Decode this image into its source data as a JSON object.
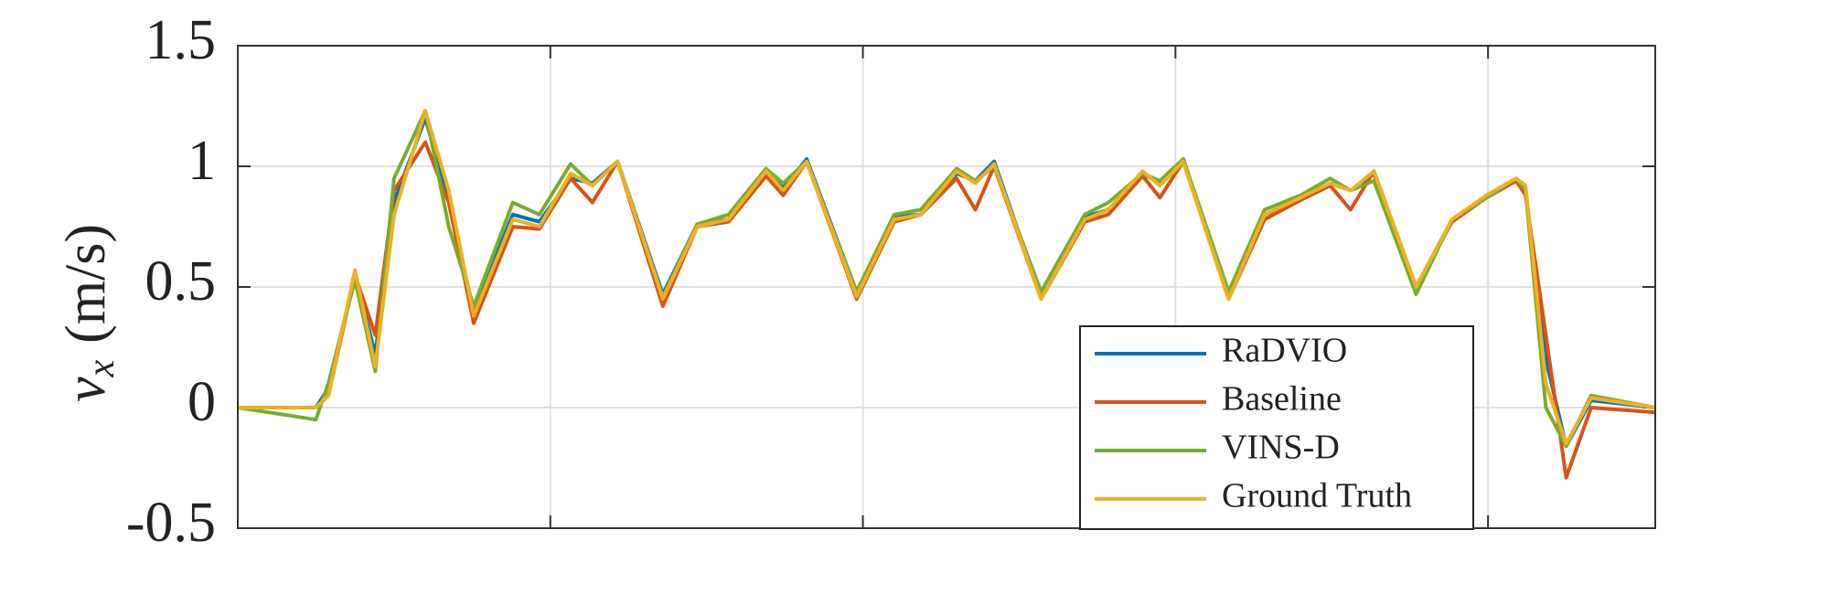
{
  "chart_data": {
    "type": "line",
    "ylabel": {
      "symbol": "v",
      "subscript": "x",
      "unit": "(m/s)"
    },
    "x": [
      0,
      5,
      5.8,
      7.5,
      8.8,
      10,
      12,
      13.5,
      15.1,
      17.6,
      19.3,
      21.3,
      22.7,
      24.3,
      27.2,
      29.4,
      31.4,
      33.8,
      34.9,
      36.4,
      39.6,
      42,
      43.7,
      46,
      47.2,
      48.4,
      51.4,
      54.2,
      55.7,
      57.9,
      59,
      60.5,
      63.4,
      65.7,
      68,
      69.9,
      71.2,
      72.7,
      75.4,
      77.7,
      79.9,
      81.8,
      82.4,
      83.7,
      85,
      86.6,
      90.7
    ],
    "xlim": [
      0,
      90.7
    ],
    "xticks": [
      20,
      40,
      60,
      80
    ],
    "ylim": [
      -0.5,
      1.5
    ],
    "yticks": [
      -0.5,
      0,
      0.5,
      1,
      1.5
    ],
    "grid": true,
    "legend": "lower-right",
    "series": [
      {
        "name": "RaDVIO",
        "color": "#0072BD",
        "values": [
          0,
          0,
          0.08,
          0.55,
          0.22,
          0.85,
          1.2,
          0.85,
          0.4,
          0.8,
          0.77,
          0.95,
          0.93,
          1.02,
          0.47,
          0.76,
          0.78,
          0.97,
          0.91,
          1.03,
          0.48,
          0.79,
          0.8,
          0.97,
          0.94,
          1.02,
          0.46,
          0.79,
          0.82,
          0.97,
          0.93,
          1.03,
          0.47,
          0.8,
          0.86,
          0.93,
          0.9,
          0.97,
          0.5,
          0.78,
          0.87,
          0.94,
          0.9,
          0.2,
          -0.16,
          0.03,
          0
        ]
      },
      {
        "name": "Baseline",
        "color": "#D95319",
        "values": [
          0,
          0,
          0.05,
          0.55,
          0.3,
          0.9,
          1.1,
          0.85,
          0.35,
          0.75,
          0.74,
          0.95,
          0.85,
          1.02,
          0.42,
          0.75,
          0.77,
          0.96,
          0.88,
          1.02,
          0.45,
          0.77,
          0.8,
          0.95,
          0.82,
          1.0,
          0.45,
          0.77,
          0.8,
          0.96,
          0.87,
          1.02,
          0.45,
          0.78,
          0.86,
          0.92,
          0.82,
          0.98,
          0.5,
          0.77,
          0.87,
          0.94,
          0.88,
          0.3,
          -0.29,
          0.0,
          -0.02
        ]
      },
      {
        "name": "VINS-D",
        "color": "#77AC30",
        "values": [
          0,
          -0.05,
          0.1,
          0.53,
          0.15,
          0.95,
          1.23,
          0.75,
          0.42,
          0.85,
          0.8,
          1.01,
          0.92,
          1.02,
          0.46,
          0.76,
          0.8,
          0.99,
          0.93,
          1.02,
          0.48,
          0.8,
          0.82,
          0.99,
          0.94,
          1.0,
          0.48,
          0.8,
          0.85,
          0.97,
          0.94,
          1.03,
          0.48,
          0.82,
          0.88,
          0.95,
          0.9,
          0.94,
          0.47,
          0.78,
          0.87,
          0.95,
          0.9,
          0.0,
          -0.16,
          0.05,
          0
        ]
      },
      {
        "name": "Ground Truth",
        "color": "#EDB120",
        "values": [
          0,
          0,
          0.05,
          0.57,
          0.17,
          0.8,
          1.23,
          0.9,
          0.38,
          0.78,
          0.75,
          0.97,
          0.92,
          1.02,
          0.45,
          0.75,
          0.78,
          0.98,
          0.9,
          1.02,
          0.46,
          0.78,
          0.8,
          0.98,
          0.93,
          1.01,
          0.45,
          0.78,
          0.82,
          0.98,
          0.92,
          1.02,
          0.45,
          0.8,
          0.87,
          0.93,
          0.9,
          0.98,
          0.5,
          0.78,
          0.88,
          0.95,
          0.92,
          0.1,
          -0.15,
          0.04,
          0
        ]
      }
    ]
  }
}
